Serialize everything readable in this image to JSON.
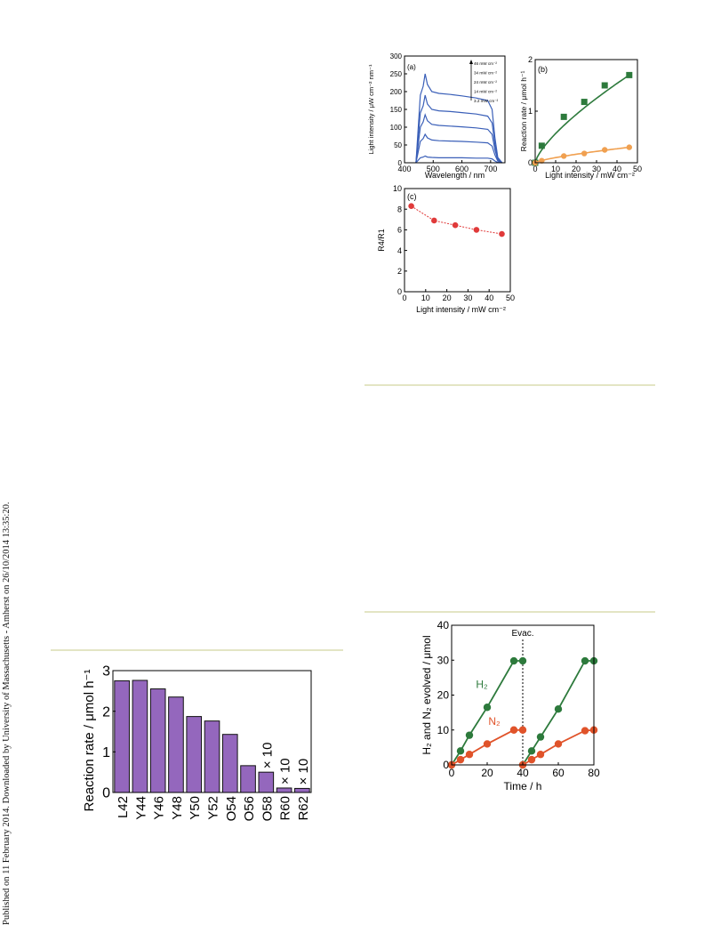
{
  "sidebar_note": "Published on 11 February 2014. Downloaded by University of Massachusetts - Amherst on 26/10/2014 13:35:20.",
  "chart_data": [
    {
      "id": "a",
      "panel_label": "(a)",
      "type": "line",
      "xlabel": "Wavelength / nm",
      "ylabel": "Light intensity / μW cm⁻² nm⁻¹",
      "xlim": [
        400,
        750
      ],
      "ylim": [
        0,
        300
      ],
      "xticks": [
        400,
        500,
        600,
        700
      ],
      "yticks": [
        0,
        50,
        100,
        150,
        200,
        250,
        300
      ],
      "color": "#3a5fb8",
      "legend": [
        "46 mW cm⁻²",
        "34 mW cm⁻²",
        "24 mW cm⁻²",
        "14 mW cm⁻²",
        "3.2 mW cm⁻²"
      ],
      "series": [
        {
          "name": "46 mW cm⁻²",
          "x": [
            440,
            455,
            465,
            472,
            480,
            495,
            520,
            560,
            600,
            650,
            690,
            705,
            715,
            725,
            740
          ],
          "y": [
            0,
            190,
            215,
            250,
            220,
            200,
            195,
            192,
            188,
            182,
            175,
            150,
            70,
            15,
            0
          ]
        },
        {
          "name": "34 mW cm⁻²",
          "x": [
            440,
            455,
            465,
            472,
            480,
            495,
            520,
            560,
            600,
            650,
            690,
            705,
            715,
            725,
            740
          ],
          "y": [
            0,
            140,
            160,
            190,
            165,
            150,
            146,
            144,
            141,
            137,
            131,
            112,
            52,
            11,
            0
          ]
        },
        {
          "name": "24 mW cm⁻²",
          "x": [
            440,
            455,
            465,
            472,
            480,
            495,
            520,
            560,
            600,
            650,
            690,
            705,
            715,
            725,
            740
          ],
          "y": [
            0,
            100,
            115,
            135,
            118,
            108,
            105,
            103,
            101,
            98,
            94,
            80,
            37,
            8,
            0
          ]
        },
        {
          "name": "14 mW cm⁻²",
          "x": [
            440,
            455,
            465,
            472,
            480,
            495,
            520,
            560,
            600,
            650,
            690,
            705,
            715,
            725,
            740
          ],
          "y": [
            0,
            60,
            68,
            80,
            70,
            64,
            62,
            61,
            60,
            58,
            56,
            47,
            22,
            5,
            0
          ]
        },
        {
          "name": "3.2 mW cm⁻²",
          "x": [
            440,
            455,
            465,
            472,
            480,
            495,
            520,
            560,
            600,
            650,
            690,
            705,
            715,
            725,
            740
          ],
          "y": [
            0,
            14,
            16,
            19,
            16,
            15,
            14,
            14,
            14,
            13,
            13,
            11,
            5,
            1,
            0
          ]
        }
      ]
    },
    {
      "id": "b",
      "panel_label": "(b)",
      "type": "scatter",
      "xlabel": "Light intensity / mW cm⁻²",
      "ylabel": "Reaction rate / μmol h⁻¹",
      "xlim": [
        0,
        50
      ],
      "ylim": [
        0,
        2
      ],
      "xticks": [
        0,
        10,
        20,
        30,
        40,
        50
      ],
      "yticks": [
        0,
        1,
        2
      ],
      "series": [
        {
          "color": "#2d7a3c",
          "marker": "square",
          "x": [
            0,
            3.2,
            14,
            24,
            34,
            46
          ],
          "y": [
            0,
            0.33,
            0.89,
            1.18,
            1.5,
            1.7
          ]
        },
        {
          "color": "#f0a050",
          "marker": "circle",
          "x": [
            0,
            3.2,
            14,
            24,
            34,
            46
          ],
          "y": [
            0,
            0.04,
            0.13,
            0.18,
            0.25,
            0.3
          ]
        }
      ]
    },
    {
      "id": "c",
      "panel_label": "(c)",
      "type": "line",
      "xlabel": "Light intensity / mW cm⁻²",
      "ylabel": "R4/R1",
      "xlim": [
        0,
        50
      ],
      "ylim": [
        0,
        10
      ],
      "xticks": [
        0,
        10,
        20,
        30,
        40,
        50
      ],
      "yticks": [
        0,
        2,
        4,
        6,
        8,
        10
      ],
      "color": "#e03a3a",
      "series": [
        {
          "x": [
            3.2,
            14,
            24,
            34,
            46
          ],
          "y": [
            8.3,
            6.9,
            6.45,
            6.0,
            5.6
          ]
        }
      ]
    },
    {
      "id": "bar",
      "type": "bar",
      "ylabel": "Reaction rate / μmol h⁻¹",
      "ylim": [
        0,
        3
      ],
      "yticks": [
        0,
        1,
        2,
        3
      ],
      "color": "#9467bd",
      "categories": [
        "L42",
        "Y44",
        "Y46",
        "Y48",
        "Y50",
        "Y52",
        "O54",
        "O56",
        "O58",
        "R60",
        "R62"
      ],
      "values": [
        2.75,
        2.76,
        2.55,
        2.35,
        1.87,
        1.76,
        1.43,
        0.66,
        0.5,
        0.11,
        0.1
      ],
      "annotations": [
        "× 10",
        "× 10",
        "× 10"
      ]
    },
    {
      "id": "time",
      "type": "line",
      "xlabel": "Time / h",
      "ylabel": "H₂ and N₂ evolved / μmol",
      "xlim": [
        0,
        80
      ],
      "ylim": [
        0,
        40
      ],
      "xticks": [
        0,
        20,
        40,
        60,
        80
      ],
      "yticks": [
        0,
        10,
        20,
        30,
        40
      ],
      "annotation": "Evac.",
      "evac_x": 40,
      "series": [
        {
          "name": "H₂",
          "color": "#2d7a3c",
          "runs": [
            {
              "x": [
                0,
                5,
                10,
                20,
                35,
                40
              ],
              "y": [
                0,
                4,
                8.5,
                16.5,
                29.8,
                29.8
              ]
            },
            {
              "x": [
                40,
                45,
                50,
                60,
                75,
                80
              ],
              "y": [
                0,
                4,
                8,
                16,
                29.8,
                29.8
              ]
            }
          ]
        },
        {
          "name": "N₂",
          "color": "#e0532a",
          "runs": [
            {
              "x": [
                0,
                5,
                10,
                20,
                35,
                40
              ],
              "y": [
                0,
                1.5,
                3,
                6,
                10,
                10
              ]
            },
            {
              "x": [
                40,
                45,
                50,
                60,
                75,
                80
              ],
              "y": [
                0,
                1.5,
                3,
                6,
                9.8,
                10
              ]
            }
          ]
        }
      ]
    }
  ]
}
